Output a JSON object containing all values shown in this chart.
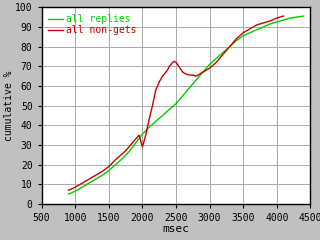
{
  "title": "",
  "xlabel": "msec",
  "ylabel": "cumulative %",
  "xlim": [
    500,
    4500
  ],
  "ylim": [
    0,
    100
  ],
  "xticks": [
    500,
    1000,
    1500,
    2000,
    2500,
    3000,
    3500,
    4000,
    4500
  ],
  "yticks": [
    0,
    10,
    20,
    30,
    40,
    50,
    60,
    70,
    80,
    90,
    100
  ],
  "bg_color": "#c0c0c0",
  "plot_bg_color": "#ffffff",
  "grid_color": "#aaaaaa",
  "legend_entries": [
    "all replies",
    "all non-gets"
  ],
  "legend_colors": [
    "#00cc00",
    "#cc0000"
  ],
  "green_x": [
    900,
    1000,
    1100,
    1200,
    1300,
    1400,
    1500,
    1600,
    1700,
    1800,
    1900,
    2000,
    2100,
    2200,
    2300,
    2400,
    2500,
    2600,
    2700,
    2800,
    2900,
    3000,
    3100,
    3200,
    3300,
    3400,
    3500,
    3600,
    3700,
    3800,
    3900,
    4000,
    4100,
    4200,
    4300,
    4400
  ],
  "green_y": [
    5,
    6.5,
    8.5,
    10.5,
    12.5,
    14.5,
    17,
    20,
    23,
    26.5,
    31,
    35.5,
    39,
    42,
    45,
    48,
    51,
    55,
    59,
    63,
    67,
    71,
    74,
    77,
    80,
    83,
    85.5,
    87,
    88.5,
    90,
    91.5,
    92.5,
    93.5,
    94.5,
    95,
    95.5
  ],
  "red_x": [
    900,
    1000,
    1100,
    1200,
    1300,
    1400,
    1500,
    1600,
    1700,
    1750,
    1800,
    1850,
    1900,
    1950,
    2000,
    2050,
    2100,
    2150,
    2200,
    2250,
    2300,
    2350,
    2380,
    2400,
    2430,
    2450,
    2480,
    2500,
    2520,
    2540,
    2560,
    2600,
    2650,
    2700,
    2750,
    2800,
    2900,
    3000,
    3100,
    3200,
    3300,
    3400,
    3500,
    3600,
    3700,
    3800,
    3900,
    4000,
    4100
  ],
  "red_y": [
    7,
    8.5,
    10.5,
    12.5,
    14.5,
    16.5,
    19,
    22.5,
    25.5,
    27,
    29,
    31,
    33,
    35,
    29,
    35,
    43,
    50,
    58,
    62,
    65,
    67,
    68.5,
    70,
    71,
    72,
    72.5,
    72,
    71,
    70,
    69,
    67,
    66,
    65.5,
    65.5,
    65,
    67,
    69,
    72,
    76,
    80,
    84,
    87,
    89,
    91,
    92,
    93,
    94.5,
    95.5
  ]
}
